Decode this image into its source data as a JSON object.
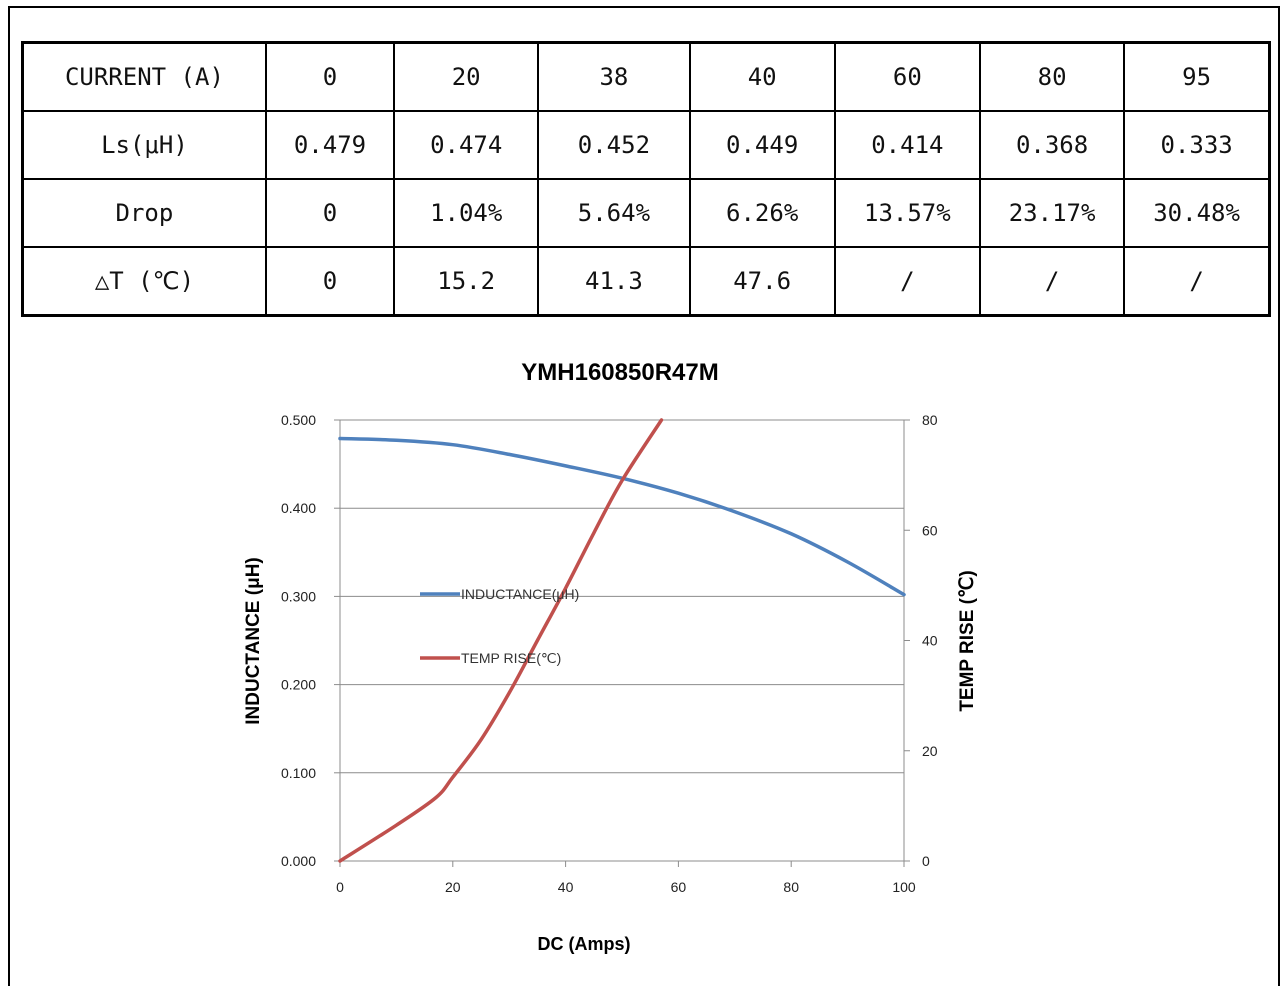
{
  "table": {
    "rows": [
      {
        "label": "CURRENT (A)",
        "cells": [
          "0",
          "20",
          "38",
          "40",
          "60",
          "80",
          "95"
        ]
      },
      {
        "label": "Ls(μH)",
        "cells": [
          "0.479",
          "0.474",
          "0.452",
          "0.449",
          "0.414",
          "0.368",
          "0.333"
        ]
      },
      {
        "label": "Drop",
        "cells": [
          "0",
          "1.04%",
          "5.64%",
          "6.26%",
          "13.57%",
          "23.17%",
          "30.48%"
        ]
      },
      {
        "label": "△T (℃)",
        "cells": [
          "0",
          "15.2",
          "41.3",
          "47.6",
          "/",
          "/",
          "/"
        ]
      }
    ]
  },
  "chart_data": {
    "type": "line",
    "title": "YMH160850R47M",
    "xlabel": "DC (Amps)",
    "ylabel": "INDUCTANCE (μH)",
    "y2label": "TEMP RISE (℃)",
    "xlim": [
      0,
      100
    ],
    "ylim": [
      0,
      0.5
    ],
    "y2lim": [
      0,
      80
    ],
    "xticks": [
      "0",
      "20",
      "40",
      "60",
      "80",
      "100"
    ],
    "yticks": [
      "0.000",
      "0.100",
      "0.200",
      "0.300",
      "0.400",
      "0.500"
    ],
    "y2ticks": [
      "0",
      "20",
      "40",
      "60",
      "80"
    ],
    "grid": true,
    "legend_position": "center-left",
    "series": [
      {
        "name": "INDUCTANCE(μH)",
        "axis": "left",
        "color": "#4f81bd",
        "x": [
          0,
          10,
          20,
          30,
          40,
          50,
          60,
          70,
          80,
          90,
          100
        ],
        "y": [
          0.479,
          0.477,
          0.472,
          0.461,
          0.448,
          0.434,
          0.417,
          0.396,
          0.371,
          0.339,
          0.302
        ]
      },
      {
        "name": "TEMP RISE(℃)",
        "axis": "right",
        "color": "#c0504d",
        "x": [
          0,
          10,
          17,
          20,
          25,
          30,
          35,
          40,
          45,
          50,
          57
        ],
        "y": [
          0,
          6.5,
          11.5,
          15.2,
          22,
          30.5,
          40,
          49.5,
          59.5,
          69,
          80
        ]
      }
    ]
  }
}
